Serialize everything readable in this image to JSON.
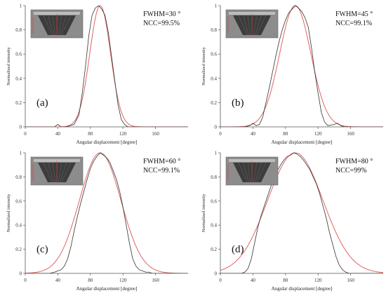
{
  "colors": {
    "measured": "#333333",
    "fit": "#e06464",
    "axis": "#555555",
    "inset_bg": "#8c8c8c"
  },
  "chart_data": [
    {
      "type": "line",
      "panel_label": "(a)",
      "annotation_fwhm": "FWHM=30 °",
      "annotation_ncc": "NCC=99.5%",
      "xlabel": "Angular displacement [degree]",
      "ylabel": "Normalized intensity",
      "xlim": [
        0,
        200
      ],
      "ylim": [
        0,
        1
      ],
      "xticks": [
        "0",
        "40",
        "80",
        "120",
        "160"
      ],
      "yticks": [
        "0",
        "0.2",
        "0.4",
        "0.6",
        "0.8",
        "1"
      ],
      "grid": false,
      "inset": "projection-image",
      "series": [
        {
          "role": "measured",
          "x": [
            0,
            36,
            40,
            44,
            50,
            60,
            66,
            70,
            74,
            78,
            82,
            86,
            90,
            94,
            98,
            102,
            106,
            110,
            114,
            118,
            122,
            126,
            130,
            200
          ],
          "y": [
            0,
            0,
            0.02,
            0,
            0,
            0.02,
            0.1,
            0.28,
            0.5,
            0.75,
            0.92,
            0.98,
            1.0,
            0.97,
            0.92,
            0.78,
            0.58,
            0.38,
            0.18,
            0.06,
            0.02,
            0,
            0,
            0
          ]
        },
        {
          "role": "fit",
          "model": "gaussian",
          "center": 92,
          "fwhm": 30
        }
      ]
    },
    {
      "type": "line",
      "panel_label": "(b)",
      "annotation_fwhm": "FWHM=45 °",
      "annotation_ncc": "NCC=99.1%",
      "xlabel": "Angular displacement [degree]",
      "ylabel": "Normalized intensity",
      "xlim": [
        0,
        200
      ],
      "ylim": [
        0,
        1
      ],
      "xticks": [
        "0",
        "40",
        "80",
        "120",
        "160"
      ],
      "yticks": [
        "0",
        "0.2",
        "0.4",
        "0.6",
        "0.8",
        "1"
      ],
      "grid": false,
      "inset": "projection-image",
      "series": [
        {
          "role": "measured",
          "x": [
            0,
            30,
            36,
            40,
            44,
            48,
            52,
            56,
            60,
            64,
            68,
            72,
            76,
            80,
            84,
            88,
            92,
            96,
            100,
            104,
            108,
            112,
            116,
            120,
            124,
            128,
            132,
            140,
            144,
            148,
            152,
            200
          ],
          "y": [
            0,
            0,
            0.01,
            0.03,
            0.01,
            0.02,
            0.08,
            0.2,
            0.32,
            0.45,
            0.58,
            0.7,
            0.8,
            0.88,
            0.94,
            0.97,
            1.0,
            0.98,
            0.95,
            0.9,
            0.82,
            0.65,
            0.45,
            0.28,
            0.12,
            0.04,
            0.01,
            0.02,
            0.03,
            0.01,
            0,
            0
          ]
        },
        {
          "role": "fit",
          "model": "gaussian",
          "center": 92,
          "fwhm": 45
        }
      ]
    },
    {
      "type": "line",
      "panel_label": "(c)",
      "annotation_fwhm": "FWHM=60 °",
      "annotation_ncc": "NCC=99.1%",
      "xlabel": "Angular displacement [degree]",
      "ylabel": "Normalized intensity",
      "xlim": [
        0,
        200
      ],
      "ylim": [
        0,
        1
      ],
      "xticks": [
        "0",
        "40",
        "80",
        "120",
        "160"
      ],
      "yticks": [
        "0",
        "0.2",
        "0.4",
        "0.6",
        "0.8",
        "1"
      ],
      "grid": false,
      "inset": "projection-image",
      "series": [
        {
          "role": "measured",
          "x": [
            0,
            30,
            36,
            40,
            44,
            48,
            52,
            56,
            60,
            64,
            68,
            72,
            76,
            80,
            84,
            88,
            92,
            96,
            100,
            104,
            108,
            112,
            116,
            120,
            124,
            128,
            132,
            136,
            140,
            144,
            148,
            152,
            156,
            200
          ],
          "y": [
            0,
            0,
            0.01,
            0.02,
            0.03,
            0.06,
            0.12,
            0.22,
            0.35,
            0.47,
            0.58,
            0.68,
            0.78,
            0.87,
            0.93,
            0.97,
            1.0,
            0.98,
            0.96,
            0.92,
            0.85,
            0.78,
            0.68,
            0.55,
            0.4,
            0.25,
            0.12,
            0.06,
            0.03,
            0.02,
            0.01,
            0.01,
            0,
            0
          ]
        },
        {
          "role": "fit",
          "model": "gaussian",
          "center": 92,
          "fwhm": 60
        }
      ]
    },
    {
      "type": "line",
      "panel_label": "(d)",
      "annotation_fwhm": "FWHM=80 °",
      "annotation_ncc": "NCC=99%",
      "xlabel": "Angular displacement [degree]",
      "ylabel": "Normalized intensity",
      "xlim": [
        0,
        200
      ],
      "ylim": [
        0,
        1
      ],
      "xticks": [
        "0",
        "40",
        "80",
        "120",
        "160"
      ],
      "yticks": [
        "0",
        "0.2",
        "0.4",
        "0.6",
        "0.8",
        "1"
      ],
      "grid": false,
      "inset": "projection-image",
      "series": [
        {
          "role": "measured",
          "x": [
            0,
            26,
            30,
            34,
            38,
            42,
            46,
            50,
            54,
            58,
            62,
            66,
            70,
            74,
            78,
            82,
            86,
            90,
            94,
            98,
            102,
            106,
            110,
            114,
            118,
            122,
            126,
            130,
            134,
            138,
            142,
            146,
            150,
            154,
            158,
            200
          ],
          "y": [
            0,
            0,
            0.01,
            0.04,
            0.12,
            0.25,
            0.38,
            0.48,
            0.56,
            0.64,
            0.72,
            0.79,
            0.85,
            0.9,
            0.94,
            0.97,
            0.98,
            1.0,
            0.99,
            0.97,
            0.94,
            0.9,
            0.86,
            0.8,
            0.74,
            0.66,
            0.56,
            0.46,
            0.34,
            0.24,
            0.14,
            0.07,
            0.03,
            0.01,
            0,
            0
          ]
        },
        {
          "role": "fit",
          "model": "gaussian",
          "center": 92,
          "fwhm": 80
        }
      ]
    }
  ]
}
